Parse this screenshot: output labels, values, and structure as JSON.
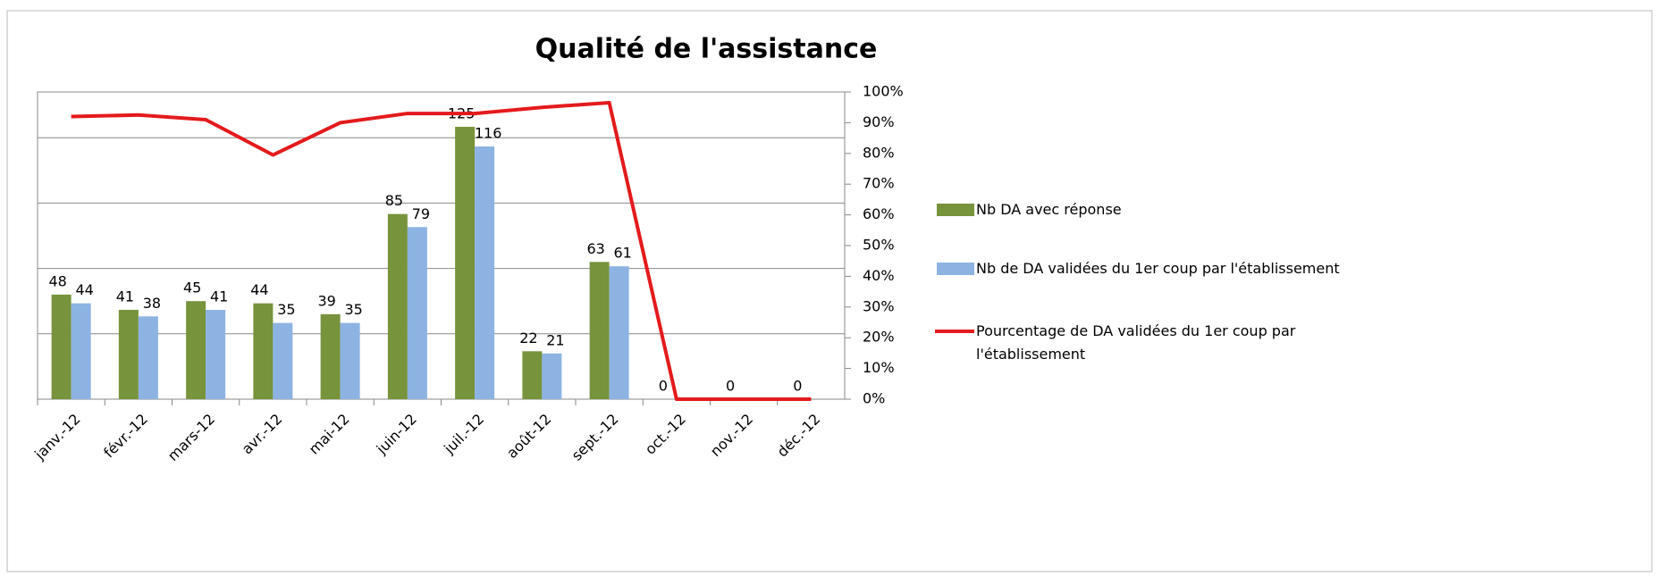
{
  "chart_data": {
    "type": "bar",
    "title": "Qualité de l'assistance",
    "categories": [
      "janv.-12",
      "févr.-12",
      "mars-12",
      "avr.-12",
      "mai-12",
      "juin-12",
      "juil.-12",
      "août-12",
      "sept.-12",
      "oct.-12",
      "nov.-12",
      "déc.-12"
    ],
    "series": [
      {
        "name": "Nb DA avec réponse",
        "color": "#77933c",
        "type": "bar",
        "values": [
          48,
          41,
          45,
          44,
          39,
          85,
          125,
          22,
          63,
          0,
          0,
          0
        ]
      },
      {
        "name": "Nb de DA validées du 1er coup par l'établissement",
        "color": "#8db3e2",
        "type": "bar",
        "values": [
          44,
          38,
          41,
          35,
          35,
          79,
          116,
          21,
          61,
          null,
          null,
          null
        ]
      },
      {
        "name": "Pourcentage de DA validées du 1er coup par l'établissement",
        "color": "#e41a1c",
        "type": "line",
        "axis": "y2",
        "values": [
          92,
          92.5,
          91,
          79.5,
          90,
          93,
          93,
          95,
          96.5,
          0,
          0,
          0
        ]
      }
    ],
    "ylim": [
      0,
      141
    ],
    "yticks": [
      0,
      30,
      60,
      90,
      120
    ],
    "grid": true,
    "y2lim": [
      0,
      100
    ],
    "y2ticks": [
      {
        "value": 0,
        "label": "0%"
      },
      {
        "value": 10,
        "label": "10%"
      },
      {
        "value": 20,
        "label": "20%"
      },
      {
        "value": 30,
        "label": "30%"
      },
      {
        "value": 40,
        "label": "40%"
      },
      {
        "value": 50,
        "label": "50%"
      },
      {
        "value": 60,
        "label": "60%"
      },
      {
        "value": 70,
        "label": "70%"
      },
      {
        "value": 80,
        "label": "80%"
      },
      {
        "value": 90,
        "label": "90%"
      },
      {
        "value": 100,
        "label": "100%"
      }
    ],
    "legend": "right"
  }
}
